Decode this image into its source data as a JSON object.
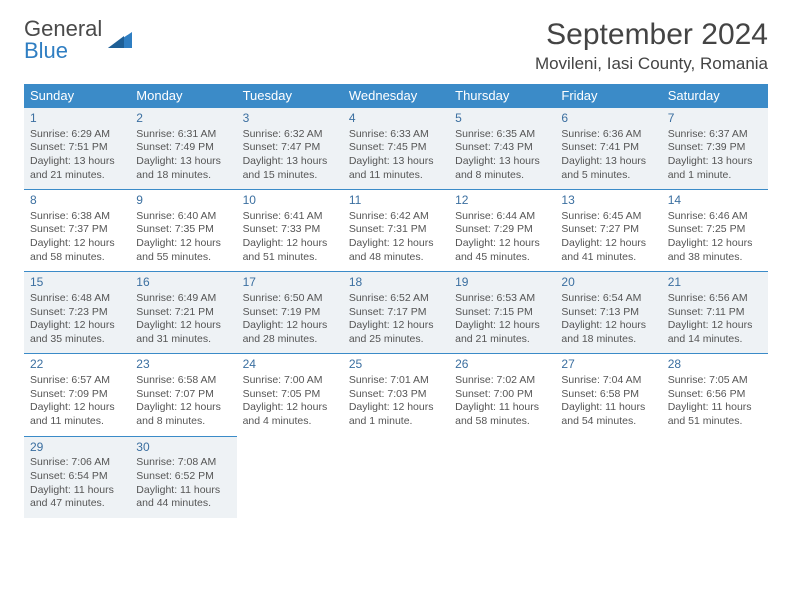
{
  "logo": {
    "text1": "General",
    "text2": "Blue"
  },
  "header": {
    "month_title": "September 2024",
    "location": "Movileni, Iasi County, Romania"
  },
  "colors": {
    "header_bg": "#3b8bc8",
    "header_fg": "#ffffff",
    "row_alt_bg": "#eef2f5",
    "border": "#3b8bc8",
    "daynum": "#3b6fa0",
    "text": "#555555",
    "logo_blue": "#2f7ec2"
  },
  "weekdays": [
    "Sunday",
    "Monday",
    "Tuesday",
    "Wednesday",
    "Thursday",
    "Friday",
    "Saturday"
  ],
  "days": [
    {
      "n": "1",
      "sr": "Sunrise: 6:29 AM",
      "ss": "Sunset: 7:51 PM",
      "d1": "Daylight: 13 hours",
      "d2": "and 21 minutes."
    },
    {
      "n": "2",
      "sr": "Sunrise: 6:31 AM",
      "ss": "Sunset: 7:49 PM",
      "d1": "Daylight: 13 hours",
      "d2": "and 18 minutes."
    },
    {
      "n": "3",
      "sr": "Sunrise: 6:32 AM",
      "ss": "Sunset: 7:47 PM",
      "d1": "Daylight: 13 hours",
      "d2": "and 15 minutes."
    },
    {
      "n": "4",
      "sr": "Sunrise: 6:33 AM",
      "ss": "Sunset: 7:45 PM",
      "d1": "Daylight: 13 hours",
      "d2": "and 11 minutes."
    },
    {
      "n": "5",
      "sr": "Sunrise: 6:35 AM",
      "ss": "Sunset: 7:43 PM",
      "d1": "Daylight: 13 hours",
      "d2": "and 8 minutes."
    },
    {
      "n": "6",
      "sr": "Sunrise: 6:36 AM",
      "ss": "Sunset: 7:41 PM",
      "d1": "Daylight: 13 hours",
      "d2": "and 5 minutes."
    },
    {
      "n": "7",
      "sr": "Sunrise: 6:37 AM",
      "ss": "Sunset: 7:39 PM",
      "d1": "Daylight: 13 hours",
      "d2": "and 1 minute."
    },
    {
      "n": "8",
      "sr": "Sunrise: 6:38 AM",
      "ss": "Sunset: 7:37 PM",
      "d1": "Daylight: 12 hours",
      "d2": "and 58 minutes."
    },
    {
      "n": "9",
      "sr": "Sunrise: 6:40 AM",
      "ss": "Sunset: 7:35 PM",
      "d1": "Daylight: 12 hours",
      "d2": "and 55 minutes."
    },
    {
      "n": "10",
      "sr": "Sunrise: 6:41 AM",
      "ss": "Sunset: 7:33 PM",
      "d1": "Daylight: 12 hours",
      "d2": "and 51 minutes."
    },
    {
      "n": "11",
      "sr": "Sunrise: 6:42 AM",
      "ss": "Sunset: 7:31 PM",
      "d1": "Daylight: 12 hours",
      "d2": "and 48 minutes."
    },
    {
      "n": "12",
      "sr": "Sunrise: 6:44 AM",
      "ss": "Sunset: 7:29 PM",
      "d1": "Daylight: 12 hours",
      "d2": "and 45 minutes."
    },
    {
      "n": "13",
      "sr": "Sunrise: 6:45 AM",
      "ss": "Sunset: 7:27 PM",
      "d1": "Daylight: 12 hours",
      "d2": "and 41 minutes."
    },
    {
      "n": "14",
      "sr": "Sunrise: 6:46 AM",
      "ss": "Sunset: 7:25 PM",
      "d1": "Daylight: 12 hours",
      "d2": "and 38 minutes."
    },
    {
      "n": "15",
      "sr": "Sunrise: 6:48 AM",
      "ss": "Sunset: 7:23 PM",
      "d1": "Daylight: 12 hours",
      "d2": "and 35 minutes."
    },
    {
      "n": "16",
      "sr": "Sunrise: 6:49 AM",
      "ss": "Sunset: 7:21 PM",
      "d1": "Daylight: 12 hours",
      "d2": "and 31 minutes."
    },
    {
      "n": "17",
      "sr": "Sunrise: 6:50 AM",
      "ss": "Sunset: 7:19 PM",
      "d1": "Daylight: 12 hours",
      "d2": "and 28 minutes."
    },
    {
      "n": "18",
      "sr": "Sunrise: 6:52 AM",
      "ss": "Sunset: 7:17 PM",
      "d1": "Daylight: 12 hours",
      "d2": "and 25 minutes."
    },
    {
      "n": "19",
      "sr": "Sunrise: 6:53 AM",
      "ss": "Sunset: 7:15 PM",
      "d1": "Daylight: 12 hours",
      "d2": "and 21 minutes."
    },
    {
      "n": "20",
      "sr": "Sunrise: 6:54 AM",
      "ss": "Sunset: 7:13 PM",
      "d1": "Daylight: 12 hours",
      "d2": "and 18 minutes."
    },
    {
      "n": "21",
      "sr": "Sunrise: 6:56 AM",
      "ss": "Sunset: 7:11 PM",
      "d1": "Daylight: 12 hours",
      "d2": "and 14 minutes."
    },
    {
      "n": "22",
      "sr": "Sunrise: 6:57 AM",
      "ss": "Sunset: 7:09 PM",
      "d1": "Daylight: 12 hours",
      "d2": "and 11 minutes."
    },
    {
      "n": "23",
      "sr": "Sunrise: 6:58 AM",
      "ss": "Sunset: 7:07 PM",
      "d1": "Daylight: 12 hours",
      "d2": "and 8 minutes."
    },
    {
      "n": "24",
      "sr": "Sunrise: 7:00 AM",
      "ss": "Sunset: 7:05 PM",
      "d1": "Daylight: 12 hours",
      "d2": "and 4 minutes."
    },
    {
      "n": "25",
      "sr": "Sunrise: 7:01 AM",
      "ss": "Sunset: 7:03 PM",
      "d1": "Daylight: 12 hours",
      "d2": "and 1 minute."
    },
    {
      "n": "26",
      "sr": "Sunrise: 7:02 AM",
      "ss": "Sunset: 7:00 PM",
      "d1": "Daylight: 11 hours",
      "d2": "and 58 minutes."
    },
    {
      "n": "27",
      "sr": "Sunrise: 7:04 AM",
      "ss": "Sunset: 6:58 PM",
      "d1": "Daylight: 11 hours",
      "d2": "and 54 minutes."
    },
    {
      "n": "28",
      "sr": "Sunrise: 7:05 AM",
      "ss": "Sunset: 6:56 PM",
      "d1": "Daylight: 11 hours",
      "d2": "and 51 minutes."
    },
    {
      "n": "29",
      "sr": "Sunrise: 7:06 AM",
      "ss": "Sunset: 6:54 PM",
      "d1": "Daylight: 11 hours",
      "d2": "and 47 minutes."
    },
    {
      "n": "30",
      "sr": "Sunrise: 7:08 AM",
      "ss": "Sunset: 6:52 PM",
      "d1": "Daylight: 11 hours",
      "d2": "and 44 minutes."
    }
  ]
}
